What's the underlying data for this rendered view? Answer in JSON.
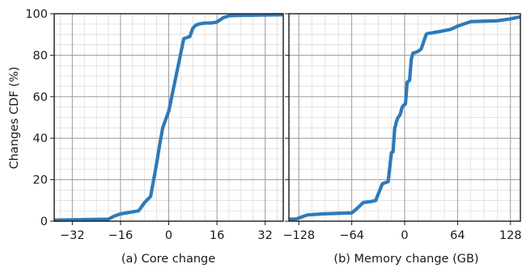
{
  "chart_data": [
    {
      "type": "line",
      "series_color": "#2e7ab9",
      "xlabel": "(a) Core change",
      "ylabel": "Changes CDF (%)",
      "xlim": [
        -38,
        38
      ],
      "ylim": [
        0,
        100
      ],
      "xticks": [
        -32,
        -16,
        0,
        16,
        32
      ],
      "xtick_labels": [
        "−32",
        "−16",
        "0",
        "16",
        "32"
      ],
      "yticks": [
        0,
        20,
        40,
        60,
        80,
        100
      ],
      "ytick_labels": [
        "0",
        "20",
        "40",
        "60",
        "80",
        "100"
      ],
      "grid": true,
      "series": [
        {
          "x": [
            -38,
            -20,
            -18,
            -16,
            -14,
            -12,
            -10,
            -8,
            -7,
            -6,
            -5,
            -4,
            -3,
            -2,
            -1,
            0,
            1,
            2,
            3,
            4,
            5,
            6,
            7,
            8,
            9,
            10,
            12,
            14,
            16,
            18,
            20,
            24,
            28,
            32,
            38
          ],
          "y": [
            0.5,
            1,
            2.5,
            3.5,
            4,
            4.5,
            5,
            9,
            10.5,
            12,
            20,
            28,
            37,
            45,
            49,
            53,
            60,
            67,
            74,
            81,
            88,
            88.5,
            89,
            93,
            94.5,
            95,
            95.5,
            95.5,
            96,
            98,
            99,
            99.2,
            99.3,
            99.4,
            99.5
          ]
        }
      ]
    },
    {
      "type": "line",
      "series_color": "#2e7ab9",
      "xlabel": "(b) Memory change (GB)",
      "ylabel": "",
      "xlim": [
        -140,
        140
      ],
      "ylim": [
        0,
        100
      ],
      "xticks": [
        -128,
        -64,
        0,
        64,
        128
      ],
      "xtick_labels": [
        "−128",
        "−64",
        "0",
        "64",
        "128"
      ],
      "yticks": [
        0,
        20,
        40,
        60,
        80,
        100
      ],
      "grid": true,
      "series": [
        {
          "x": [
            -140,
            -132,
            -128,
            -118,
            -100,
            -80,
            -64,
            -58,
            -50,
            -40,
            -35,
            -30,
            -27,
            -24,
            -20,
            -16,
            -14,
            -12,
            -11,
            -10,
            -9,
            -8,
            -6,
            -5,
            -3,
            -1,
            1,
            3,
            5,
            6,
            8,
            10,
            12,
            14,
            16,
            20,
            26,
            28,
            32,
            36,
            44,
            56,
            64,
            80,
            96,
            112,
            128,
            140
          ],
          "y": [
            1,
            1,
            1.5,
            3,
            3.5,
            3.8,
            4,
            6,
            9,
            9.5,
            10,
            15,
            18,
            18.5,
            19,
            33,
            33.5,
            45,
            46,
            48,
            49,
            50,
            51,
            52,
            55,
            56,
            56.5,
            67,
            67.5,
            68,
            78,
            81,
            81.2,
            81.5,
            81.8,
            83,
            90,
            90.5,
            90.7,
            91,
            91.5,
            92.5,
            94,
            96.2,
            96.4,
            96.6,
            97.5,
            98.5
          ]
        }
      ]
    }
  ]
}
